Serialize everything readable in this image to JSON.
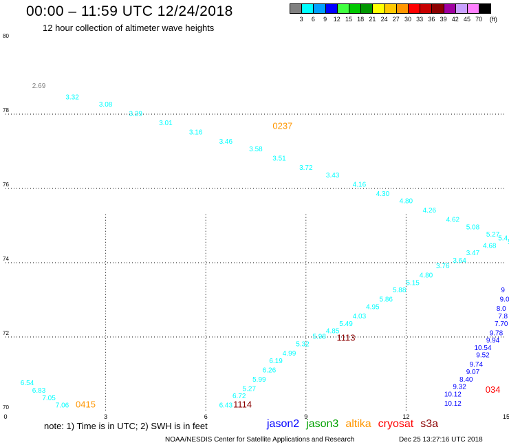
{
  "header": {
    "title": "00:00 – 11:59 UTC 12/24/2018",
    "subtitle": "12 hour collection of altimeter wave heights"
  },
  "legend": {
    "unit": "(ft)",
    "items": [
      {
        "label": "3",
        "color": "#808080"
      },
      {
        "label": "6",
        "color": "#00ffff"
      },
      {
        "label": "9",
        "color": "#00a0ff"
      },
      {
        "label": "12",
        "color": "#0000ff"
      },
      {
        "label": "15",
        "color": "#40ff40"
      },
      {
        "label": "18",
        "color": "#00c800"
      },
      {
        "label": "21",
        "color": "#009600"
      },
      {
        "label": "24",
        "color": "#ffff00"
      },
      {
        "label": "27",
        "color": "#ffc800"
      },
      {
        "label": "30",
        "color": "#ff9600"
      },
      {
        "label": "33",
        "color": "#ff0000"
      },
      {
        "label": "36",
        "color": "#c80000"
      },
      {
        "label": "39",
        "color": "#8b0000"
      },
      {
        "label": "42",
        "color": "#a000a0"
      },
      {
        "label": "45",
        "color": "#c8a0ff"
      },
      {
        "label": "70",
        "color": "#ff80ff"
      },
      {
        "label": "",
        "color": "#000000"
      }
    ]
  },
  "footer": {
    "note": "note: 1) Time is in UTC; 2) SWH is in feet",
    "satellites": [
      {
        "name": "jason2",
        "color": "#0000ff"
      },
      {
        "name": "jason3",
        "color": "#00a000"
      },
      {
        "name": "altika",
        "color": "#ff9600"
      },
      {
        "name": "cryosat",
        "color": "#ff0000"
      },
      {
        "name": "s3a",
        "color": "#8b0000"
      }
    ],
    "credit": "NOAA/NESDIS Center for Satellite Applications and Research",
    "timestamp": "Dec 25 13:27:16 UTC 2018"
  },
  "chart_data": {
    "type": "scatter",
    "xlim": [
      0,
      15
    ],
    "ylim": [
      70,
      80
    ],
    "x_ticks": [
      "0",
      "3",
      "6",
      "9",
      "12",
      "15"
    ],
    "y_ticks": [
      "70",
      "72",
      "74",
      "76",
      "78",
      "80"
    ],
    "grid": true,
    "tracks": [
      {
        "label": "0237",
        "label_x": 8.3,
        "label_y": 77.6,
        "label_color": "#ff9600",
        "color": "#00ffff",
        "points": [
          [
            1.0,
            78.7,
            "2.69",
            "#808080"
          ],
          [
            2.0,
            78.4,
            "3.32"
          ],
          [
            3.0,
            78.2,
            "3.08"
          ],
          [
            3.9,
            77.95,
            "3.29"
          ],
          [
            4.8,
            77.7,
            "3.01"
          ],
          [
            5.7,
            77.45,
            "3.16"
          ],
          [
            6.6,
            77.2,
            "3.46"
          ],
          [
            7.5,
            77.0,
            "3.58"
          ],
          [
            8.2,
            76.75,
            "3.51"
          ],
          [
            9.0,
            76.5,
            "3.72"
          ],
          [
            9.8,
            76.3,
            "3.43"
          ],
          [
            10.6,
            76.05,
            "4.16"
          ],
          [
            11.3,
            75.8,
            "4.30"
          ],
          [
            12.0,
            75.6,
            "4.80"
          ],
          [
            12.7,
            75.35,
            "4.26"
          ],
          [
            13.4,
            75.1,
            "4.62"
          ],
          [
            14.0,
            74.9,
            "5.08"
          ],
          [
            14.6,
            74.7,
            "5.27"
          ],
          [
            15.1,
            74.5,
            "5"
          ]
        ]
      },
      {
        "label": "0415",
        "label_x": 2.4,
        "label_y": 70.1,
        "label_color": "#ff9600",
        "color": "#00ffff",
        "points": [
          [
            0.65,
            70.7,
            "6.54"
          ],
          [
            1.0,
            70.5,
            "6.83"
          ],
          [
            1.3,
            70.3,
            "7.05"
          ],
          [
            1.7,
            70.1,
            "7.06"
          ]
        ]
      },
      {
        "label": "1113",
        "label_x": 10.2,
        "label_y": 71.9,
        "label_color": "#8b0000",
        "color": "#00ffff",
        "points": [
          [
            6.6,
            70.1,
            "6.43"
          ],
          [
            7.0,
            70.35,
            "6.72"
          ],
          [
            7.3,
            70.55,
            "5.27"
          ],
          [
            7.6,
            70.8,
            "5.99"
          ],
          [
            7.9,
            71.05,
            "6.26"
          ],
          [
            8.1,
            71.3,
            "6.19"
          ],
          [
            8.5,
            71.5,
            "4.99"
          ],
          [
            8.9,
            71.75,
            "5.32"
          ],
          [
            9.4,
            71.95,
            "5.98"
          ],
          [
            9.8,
            72.1,
            "4.85"
          ],
          [
            10.2,
            72.3,
            "5.49"
          ],
          [
            10.6,
            72.5,
            "4.03"
          ],
          [
            11.0,
            72.75,
            "4.95"
          ],
          [
            11.4,
            72.95,
            "5.86"
          ],
          [
            11.8,
            73.2,
            "5.88"
          ],
          [
            12.2,
            73.4,
            "5.15"
          ],
          [
            12.6,
            73.6,
            "4.80"
          ],
          [
            13.1,
            73.85,
            "3.76"
          ],
          [
            13.6,
            74.0,
            "3.64"
          ],
          [
            14.0,
            74.2,
            "3.47"
          ],
          [
            14.5,
            74.4,
            "4.68"
          ],
          [
            14.9,
            74.6,
            "5.4"
          ]
        ]
      },
      {
        "label": "1114",
        "label_x": 7.1,
        "label_y": 70.1,
        "label_color": "#8b0000",
        "color": "#00ffff",
        "points": []
      },
      {
        "label": "034",
        "label_x": 14.6,
        "label_y": 70.5,
        "label_color": "#ff0000",
        "color": "#0000ff",
        "points": [
          [
            14.9,
            73.2,
            "9"
          ],
          [
            14.95,
            72.95,
            "9.0"
          ],
          [
            14.85,
            72.7,
            "8.0"
          ],
          [
            14.9,
            72.5,
            "7.8"
          ],
          [
            14.85,
            72.3,
            "7.70"
          ],
          [
            14.7,
            72.05,
            "9.78"
          ],
          [
            14.6,
            71.85,
            "9.94"
          ],
          [
            14.3,
            71.65,
            "10.54"
          ],
          [
            14.3,
            71.45,
            "9.52"
          ],
          [
            14.1,
            71.2,
            "9.74"
          ],
          [
            14.0,
            71.0,
            "9.07"
          ],
          [
            13.8,
            70.8,
            "8.40"
          ],
          [
            13.6,
            70.6,
            "9.32"
          ],
          [
            13.4,
            70.4,
            "10.12"
          ],
          [
            13.4,
            70.15,
            "10.12"
          ]
        ]
      }
    ]
  }
}
